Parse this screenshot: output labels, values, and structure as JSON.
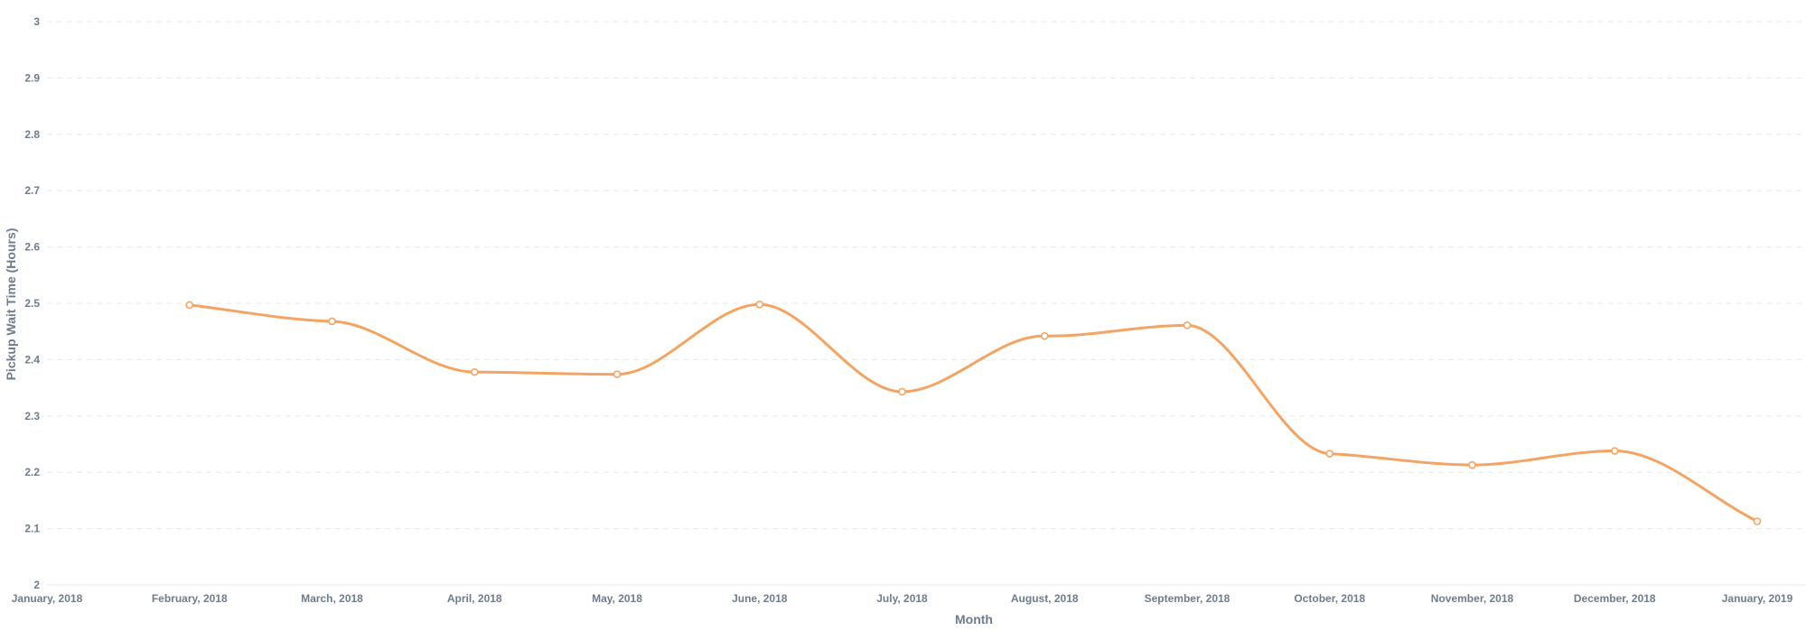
{
  "chart_data": {
    "type": "line",
    "title": "",
    "xlabel": "Month",
    "ylabel": "Pickup Wait Time (Hours)",
    "x": [
      "January, 2018",
      "February, 2018",
      "March, 2018",
      "April, 2018",
      "May, 2018",
      "June, 2018",
      "July, 2018",
      "August, 2018",
      "September, 2018",
      "October, 2018",
      "November, 2018",
      "December, 2018",
      "January, 2019"
    ],
    "series": [
      {
        "name": "",
        "color": "#f4a462",
        "values": [
          null,
          2.497,
          2.468,
          2.378,
          2.374,
          2.498,
          2.343,
          2.442,
          2.461,
          2.233,
          2.213,
          2.238,
          2.113
        ]
      }
    ],
    "ylim": [
      2,
      3
    ],
    "yticks": [
      "2",
      "2.1",
      "2.2",
      "2.3",
      "2.4",
      "2.5",
      "2.6",
      "2.7",
      "2.8",
      "2.9",
      "3"
    ],
    "grid": true,
    "legend": "none",
    "curve": "smooth",
    "markers": true
  }
}
